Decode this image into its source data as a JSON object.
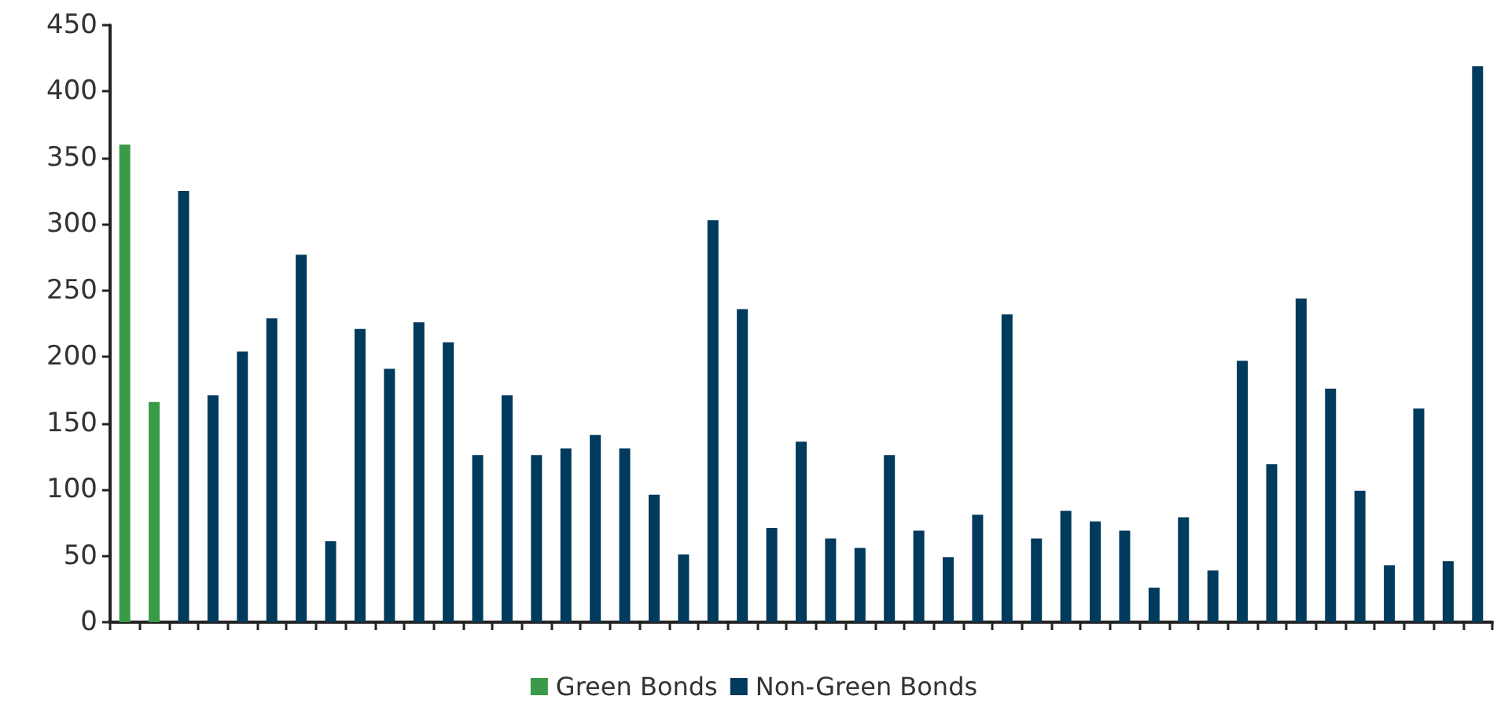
{
  "chart_data": {
    "type": "bar",
    "categories": [
      null,
      null,
      null,
      null,
      null,
      null,
      null,
      null,
      null,
      null,
      null,
      null,
      null,
      null,
      null,
      null,
      null,
      null,
      null,
      null,
      null,
      null,
      null,
      null,
      null,
      null,
      null,
      null,
      null,
      null,
      null,
      null,
      null,
      null,
      null,
      null,
      null,
      null,
      null,
      null,
      null,
      null,
      null,
      null,
      null,
      null,
      null
    ],
    "series": [
      {
        "name": "Green Bonds",
        "color": "#3a9a48",
        "values": [
          360,
          166,
          null,
          null,
          null,
          null,
          null,
          null,
          null,
          null,
          null,
          null,
          null,
          null,
          null,
          null,
          null,
          null,
          null,
          null,
          null,
          null,
          null,
          null,
          null,
          null,
          null,
          null,
          null,
          null,
          null,
          null,
          null,
          null,
          null,
          null,
          null,
          null,
          null,
          null,
          null,
          null,
          null,
          null,
          null,
          null,
          null
        ]
      },
      {
        "name": "Non-Green Bonds",
        "color": "#003a5d",
        "values": [
          null,
          null,
          325,
          171,
          204,
          229,
          277,
          61,
          221,
          191,
          226,
          211,
          126,
          171,
          126,
          131,
          141,
          131,
          96,
          51,
          303,
          236,
          71,
          136,
          63,
          56,
          126,
          69,
          49,
          81,
          232,
          63,
          84,
          76,
          69,
          26,
          79,
          39,
          197,
          119,
          244,
          176,
          99,
          43,
          161,
          46,
          419
        ]
      }
    ],
    "ylim": [
      0,
      450
    ],
    "yticks": [
      0,
      50,
      100,
      150,
      200,
      250,
      300,
      350,
      400,
      450
    ],
    "grid": false,
    "legend": "bottom"
  }
}
